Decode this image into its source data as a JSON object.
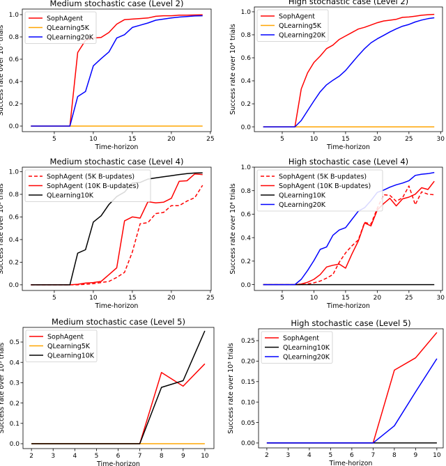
{
  "chart_data": [
    {
      "type": "line",
      "title": "Medium stochastic case (Level 2)",
      "xlabel": "Time-horizon",
      "ylabel": "Success rate over 10⁴ trials",
      "xlim": [
        0.9,
        25.1
      ],
      "ylim": [
        -0.05,
        1.05
      ],
      "xticks": [
        5,
        10,
        15,
        20,
        25
      ],
      "yticks": [
        0.0,
        0.2,
        0.4,
        0.6,
        0.8,
        1.0
      ],
      "ytick_decimals": 1,
      "legend": "top-left",
      "grid": false,
      "x": [
        2,
        3,
        4,
        5,
        6,
        7,
        8,
        9,
        10,
        11,
        12,
        13,
        14,
        15,
        16,
        17,
        18,
        19,
        20,
        21,
        22,
        23,
        24
      ],
      "series": [
        {
          "name": "SophAgent",
          "color": "#ff0000",
          "dash": false,
          "values": [
            0,
            0,
            0,
            0,
            0,
            0,
            0.66,
            0.77,
            0.79,
            0.795,
            0.84,
            0.915,
            0.955,
            0.96,
            0.965,
            0.97,
            0.985,
            0.99,
            0.99,
            0.995,
            0.995,
            0.997,
            0.998
          ]
        },
        {
          "name": "QLearning5K",
          "color": "#ffa500",
          "dash": false,
          "values": [
            0,
            0,
            0,
            0,
            0,
            0,
            0,
            0,
            0,
            0,
            0,
            0,
            0,
            0,
            0,
            0,
            0,
            0,
            0,
            0,
            0,
            0,
            0
          ]
        },
        {
          "name": "QLearning20K",
          "color": "#0000ff",
          "dash": false,
          "values": [
            0,
            0,
            0,
            0,
            0,
            0,
            0.265,
            0.31,
            0.54,
            0.605,
            0.665,
            0.79,
            0.82,
            0.885,
            0.905,
            0.925,
            0.95,
            0.96,
            0.97,
            0.978,
            0.983,
            0.988,
            0.99
          ]
        }
      ]
    },
    {
      "type": "line",
      "title": "High stochastic case (Level 2)",
      "xlabel": "Time-horizon",
      "ylabel": "Success rate over 10⁴ trials",
      "xlim": [
        0.6,
        30.3
      ],
      "ylim": [
        -0.042,
        1.042
      ],
      "xticks": [
        5,
        10,
        15,
        20,
        25,
        30
      ],
      "yticks": [
        0.0,
        0.2,
        0.4,
        0.6,
        0.8,
        1.0
      ],
      "ytick_decimals": 1,
      "legend": "top-left",
      "grid": false,
      "x": [
        2,
        3,
        4,
        5,
        6,
        7,
        8,
        9,
        10,
        11,
        12,
        13,
        14,
        15,
        16,
        17,
        18,
        19,
        20,
        21,
        22,
        23,
        24,
        25,
        26,
        27,
        28,
        29
      ],
      "series": [
        {
          "name": "SophAgent",
          "color": "#ff0000",
          "dash": false,
          "values": [
            0,
            0,
            0,
            0,
            0,
            0,
            0.33,
            0.47,
            0.56,
            0.615,
            0.68,
            0.71,
            0.76,
            0.79,
            0.82,
            0.85,
            0.865,
            0.885,
            0.905,
            0.92,
            0.927,
            0.935,
            0.952,
            0.955,
            0.962,
            0.97,
            0.975,
            0.978
          ]
        },
        {
          "name": "QLearning5K",
          "color": "#ffa500",
          "dash": false,
          "values": [
            0,
            0,
            0,
            0,
            0,
            0,
            0,
            0,
            0,
            0,
            0,
            0,
            0,
            0,
            0,
            0,
            0,
            0,
            0,
            0,
            0,
            0,
            0,
            0,
            0,
            0,
            0,
            0
          ]
        },
        {
          "name": "QLearning20K",
          "color": "#0000ff",
          "dash": false,
          "values": [
            0,
            0,
            0,
            0,
            0,
            0,
            0.055,
            0.14,
            0.225,
            0.305,
            0.365,
            0.405,
            0.44,
            0.49,
            0.555,
            0.62,
            0.68,
            0.73,
            0.765,
            0.795,
            0.825,
            0.852,
            0.875,
            0.89,
            0.912,
            0.928,
            0.94,
            0.948
          ]
        }
      ]
    },
    {
      "type": "line",
      "title": "Medium stochastic case (Level 4)",
      "xlabel": "Time-horizon",
      "ylabel": "Success rate over 10³ trials",
      "xlim": [
        0.9,
        25.1
      ],
      "ylim": [
        -0.05,
        1.04
      ],
      "xticks": [
        5,
        10,
        15,
        20,
        25
      ],
      "yticks": [
        0.0,
        0.2,
        0.4,
        0.6,
        0.8,
        1.0
      ],
      "ytick_decimals": 1,
      "legend": "top-left",
      "grid": false,
      "x": [
        2,
        3,
        4,
        5,
        6,
        7,
        8,
        9,
        10,
        11,
        12,
        13,
        14,
        15,
        16,
        17,
        18,
        19,
        20,
        21,
        22,
        23,
        24
      ],
      "series": [
        {
          "name": "SophAgent (5K B-updates)",
          "color": "#ff0000",
          "dash": true,
          "values": [
            0,
            0,
            0,
            0,
            0,
            0,
            0,
            0.005,
            0.01,
            0.02,
            0.03,
            0.065,
            0.11,
            0.29,
            0.54,
            0.55,
            0.63,
            0.64,
            0.7,
            0.7,
            0.74,
            0.77,
            0.88
          ]
        },
        {
          "name": "SophAgent (10K B-updates)",
          "color": "#ff0000",
          "dash": false,
          "values": [
            0,
            0,
            0,
            0,
            0,
            0,
            0.005,
            0.015,
            0.02,
            0.03,
            0.09,
            0.15,
            0.565,
            0.6,
            0.59,
            0.735,
            0.725,
            0.73,
            0.765,
            0.915,
            0.92,
            0.98,
            0.975
          ]
        },
        {
          "name": "QLearning10K",
          "color": "#000000",
          "dash": false,
          "values": [
            0,
            0,
            0,
            0,
            0,
            0,
            0.28,
            0.31,
            0.555,
            0.61,
            0.71,
            0.78,
            0.82,
            0.9,
            0.905,
            0.935,
            0.945,
            0.955,
            0.965,
            0.975,
            0.983,
            0.988,
            0.99
          ]
        }
      ]
    },
    {
      "type": "line",
      "title": "High stochastic case (Level 4)",
      "xlabel": "Time-horizon",
      "ylabel": "Success rate over 10⁴ trials",
      "xlim": [
        0.6,
        30.3
      ],
      "ylim": [
        -0.05,
        1.0
      ],
      "xticks": [
        5,
        10,
        15,
        20,
        25,
        30
      ],
      "yticks": [
        0.0,
        0.2,
        0.4,
        0.6,
        0.8,
        1.0
      ],
      "ytick_decimals": 1,
      "legend": "top-left",
      "grid": false,
      "x": [
        2,
        3,
        4,
        5,
        6,
        7,
        8,
        9,
        10,
        11,
        12,
        13,
        14,
        15,
        16,
        17,
        18,
        19,
        20,
        21,
        22,
        23,
        24,
        25,
        26,
        27,
        28,
        29
      ],
      "series": [
        {
          "name": "SophAgent (5K B-updates)",
          "color": "#ff0000",
          "dash": true,
          "values": [
            0,
            0,
            0,
            0,
            0,
            0,
            0,
            0.005,
            0.015,
            0.03,
            0.055,
            0.085,
            0.19,
            0.27,
            0.33,
            0.38,
            0.53,
            0.515,
            0.65,
            0.765,
            0.76,
            0.71,
            0.74,
            0.84,
            0.68,
            0.79,
            0.77,
            0.765
          ]
        },
        {
          "name": "SophAgent (10K B-updates)",
          "color": "#ff0000",
          "dash": false,
          "values": [
            0,
            0,
            0,
            0,
            0,
            0,
            0.005,
            0.02,
            0.045,
            0.085,
            0.15,
            0.165,
            0.175,
            0.14,
            0.26,
            0.37,
            0.525,
            0.5,
            0.635,
            0.69,
            0.735,
            0.67,
            0.73,
            0.745,
            0.77,
            0.825,
            0.81,
            0.88
          ]
        },
        {
          "name": "QLearning10K",
          "color": "#000000",
          "dash": false,
          "values": [
            0,
            0,
            0,
            0,
            0,
            0,
            0,
            0,
            0,
            0,
            0,
            0,
            0,
            0,
            0,
            0,
            0,
            0,
            0,
            0,
            0,
            0,
            0,
            0,
            0,
            0,
            0,
            0
          ]
        },
        {
          "name": "QLearning20K",
          "color": "#0000ff",
          "dash": false,
          "values": [
            0,
            0,
            0,
            0,
            0,
            0,
            0.045,
            0.12,
            0.205,
            0.3,
            0.32,
            0.42,
            0.465,
            0.485,
            0.555,
            0.625,
            0.655,
            0.715,
            0.785,
            0.805,
            0.83,
            0.85,
            0.865,
            0.885,
            0.93,
            0.94,
            0.945,
            0.955
          ]
        }
      ]
    },
    {
      "type": "line",
      "title": "Medium stochastic case (Level 5)",
      "xlabel": "Time-horizon",
      "ylabel": "Success rate over 10³ trials",
      "xlim": [
        1.61,
        10.42
      ],
      "ylim": [
        -0.024,
        0.572
      ],
      "xticks": [
        2,
        3,
        4,
        5,
        6,
        7,
        8,
        9,
        10
      ],
      "yticks": [
        0.0,
        0.1,
        0.2,
        0.3,
        0.4,
        0.5
      ],
      "ytick_decimals": 1,
      "legend": "top-left",
      "grid": false,
      "x": [
        2,
        3,
        4,
        5,
        6,
        7,
        8,
        9,
        10
      ],
      "series": [
        {
          "name": "SophAgent",
          "color": "#ff0000",
          "dash": false,
          "values": [
            0,
            0,
            0,
            0,
            0,
            0,
            0.35,
            0.283,
            0.393
          ]
        },
        {
          "name": "QLearning5K",
          "color": "#ffa500",
          "dash": false,
          "values": [
            0,
            0,
            0,
            0,
            0,
            0,
            0,
            0,
            0
          ]
        },
        {
          "name": "QLearning10K",
          "color": "#000000",
          "dash": false,
          "values": [
            0,
            0,
            0,
            0,
            0,
            0,
            0.277,
            0.31,
            0.555
          ]
        }
      ]
    },
    {
      "type": "line",
      "title": "High stochastic case (Level 5)",
      "xlabel": "Time-horizon",
      "ylabel": "Success rate over 10³ trials",
      "xlim": [
        1.61,
        10.3
      ],
      "ylim": [
        -0.012,
        0.279
      ],
      "xticks": [
        2,
        3,
        4,
        5,
        6,
        7,
        8,
        9,
        10
      ],
      "yticks": [
        0.0,
        0.05,
        0.1,
        0.15,
        0.2,
        0.25
      ],
      "ytick_decimals": 2,
      "legend": "top-left",
      "grid": false,
      "x": [
        2,
        3,
        4,
        5,
        6,
        7,
        8,
        9,
        10
      ],
      "series": [
        {
          "name": "SophAgent",
          "color": "#ff0000",
          "dash": false,
          "values": [
            0,
            0,
            0,
            0,
            0,
            0,
            0.178,
            0.208,
            0.27
          ]
        },
        {
          "name": "QLearning10K",
          "color": "#000000",
          "dash": false,
          "values": [
            0,
            0,
            0,
            0,
            0,
            0,
            0,
            0,
            0
          ]
        },
        {
          "name": "QLearning20K",
          "color": "#0000ff",
          "dash": false,
          "values": [
            0,
            0,
            0,
            0,
            0,
            0,
            0.042,
            0.125,
            0.206
          ]
        }
      ]
    }
  ]
}
